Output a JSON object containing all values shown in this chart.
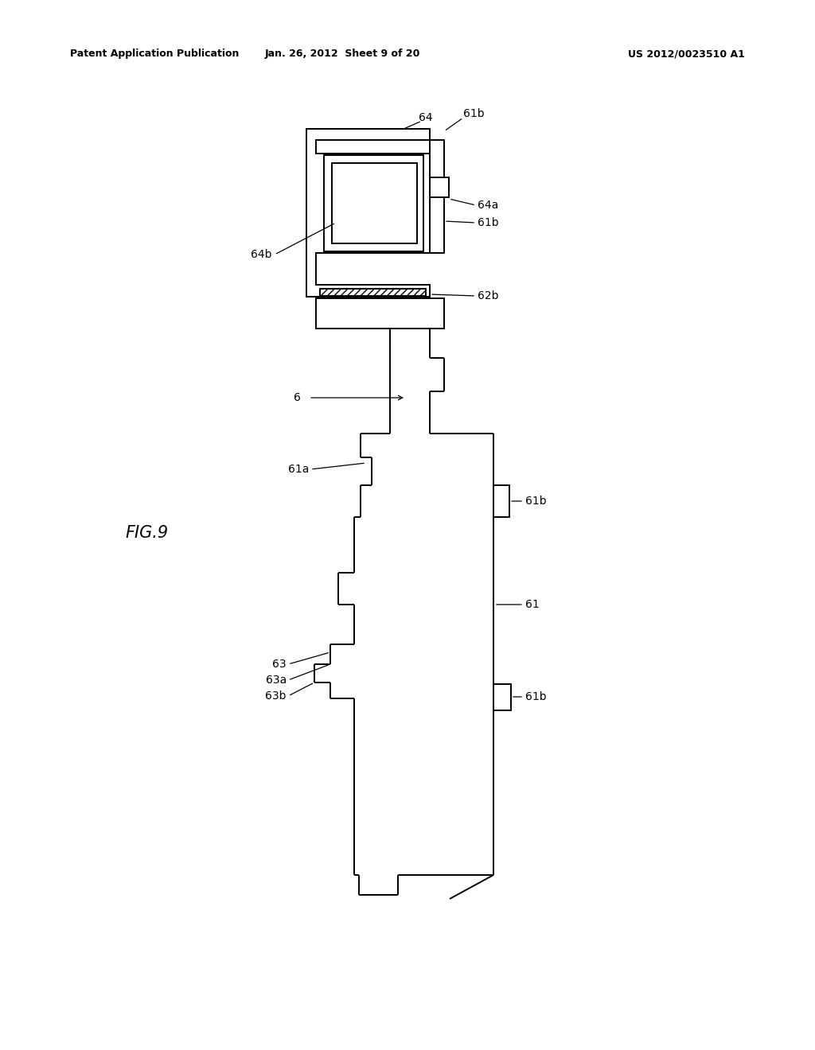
{
  "background_color": "#ffffff",
  "line_color": "#000000",
  "lw": 1.4,
  "header_left": "Patent Application Publication",
  "header_center": "Jan. 26, 2012  Sheet 9 of 20",
  "header_right": "US 2012/0023510 A1",
  "fig_label": "FIG.9"
}
